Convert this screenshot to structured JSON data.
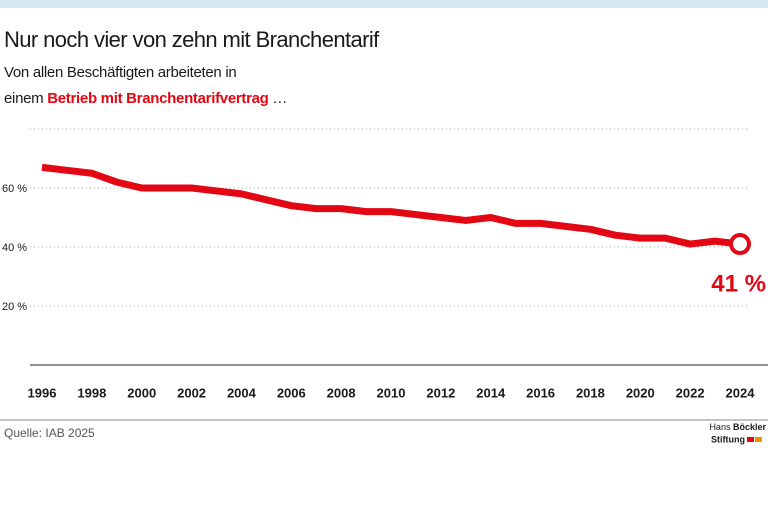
{
  "chart_data": {
    "type": "line",
    "title": "Nur noch vier von zehn mit Branchentarif",
    "subtitle": [
      "Von allen Beschäftigten arbeiteten in",
      "einem",
      "Betrieb mit Branchentarifvertrag",
      "…"
    ],
    "x": [
      1996,
      1997,
      1998,
      1999,
      2000,
      2001,
      2002,
      2003,
      2004,
      2005,
      2006,
      2007,
      2008,
      2009,
      2010,
      2011,
      2012,
      2013,
      2014,
      2015,
      2016,
      2017,
      2018,
      2019,
      2020,
      2021,
      2022,
      2023,
      2024
    ],
    "values": [
      67,
      66,
      65,
      62,
      60,
      60,
      60,
      59,
      58,
      56,
      54,
      53,
      53,
      52,
      52,
      51,
      50,
      49,
      50,
      48,
      48,
      47,
      46,
      44,
      43,
      43,
      41,
      42,
      41
    ],
    "value_labels": [
      null,
      null,
      null,
      null,
      null,
      null,
      null,
      null,
      null,
      null,
      null,
      null,
      null,
      null,
      null,
      null,
      null,
      null,
      null,
      null,
      null,
      null,
      null,
      null,
      null,
      null,
      null,
      null,
      "41 %"
    ],
    "color": "#e30613",
    "xlim": [
      1996,
      2024
    ],
    "xticks": [
      1996,
      1998,
      2000,
      2002,
      2004,
      2006,
      2008,
      2010,
      2012,
      2014,
      2016,
      2018,
      2020,
      2022,
      2024
    ],
    "ylim": [
      0,
      80
    ],
    "yticks": [
      {
        "value": 20,
        "label": "20 %"
      },
      {
        "value": 40,
        "label": "40 %"
      },
      {
        "value": 60,
        "label": "60 %"
      }
    ],
    "grid": true,
    "source": "Quelle: IAB 2025",
    "logo": [
      "Hans",
      "Böckler",
      "Stiftung"
    ]
  }
}
